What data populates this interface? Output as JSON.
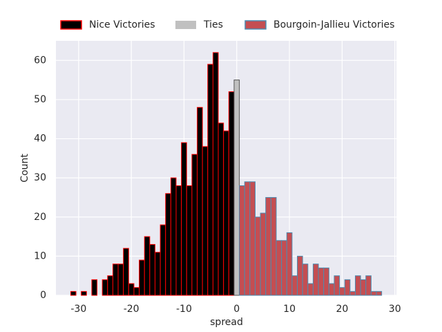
{
  "chart_data": {
    "type": "histogram",
    "xlabel": "spread",
    "ylabel": "Count",
    "xlim": [
      -34.3,
      30.3
    ],
    "ylim": [
      0,
      65
    ],
    "xticks": [
      -30,
      -20,
      -10,
      0,
      10,
      20,
      30
    ],
    "yticks": [
      0,
      10,
      20,
      30,
      40,
      50,
      60
    ],
    "grid": true,
    "legend": "top",
    "series": [
      {
        "name": "Nice Victories",
        "color": "#000000",
        "edgecolor": "#ff0000",
        "bins": [
          -31.5,
          -30.5,
          -29.5,
          -28.5,
          -27.5,
          -26.5,
          -25.5,
          -24.5,
          -23.5,
          -22.5,
          -21.5,
          -20.5,
          -19.5,
          -18.5,
          -17.5,
          -16.5,
          -15.5,
          -14.5,
          -13.5,
          -12.5,
          -11.5,
          -10.5,
          -9.5,
          -8.5,
          -7.5,
          -6.5,
          -5.5,
          -4.5,
          -3.5,
          -2.5,
          -1.5,
          -0.5
        ],
        "values": [
          1,
          0,
          1,
          0,
          4,
          0,
          4,
          5,
          8,
          8,
          12,
          3,
          2,
          9,
          15,
          13,
          11,
          18,
          26,
          30,
          28,
          39,
          28,
          36,
          48,
          38,
          59,
          62,
          44,
          42,
          52
        ]
      },
      {
        "name": "Ties",
        "color": "#c0c0c0",
        "edgecolor": "#555555",
        "bins": [
          -0.5,
          0.5
        ],
        "values": [
          55
        ]
      },
      {
        "name": "Bourgoin-Jallieu Victories",
        "color": "#c44e52",
        "edgecolor": "#4c8cb0",
        "bins": [
          0.5,
          1.5,
          2.5,
          3.5,
          4.5,
          5.5,
          6.5,
          7.5,
          8.5,
          9.5,
          10.5,
          11.5,
          12.5,
          13.5,
          14.5,
          15.5,
          16.5,
          17.5,
          18.5,
          19.5,
          20.5,
          21.5,
          22.5,
          23.5,
          24.5,
          25.5,
          26.5,
          27.5
        ],
        "values": [
          28,
          29,
          29,
          20,
          21,
          25,
          25,
          14,
          14,
          16,
          5,
          10,
          8,
          3,
          8,
          7,
          7,
          3,
          5,
          2,
          4,
          1,
          5,
          4,
          5,
          1,
          1
        ]
      }
    ]
  }
}
